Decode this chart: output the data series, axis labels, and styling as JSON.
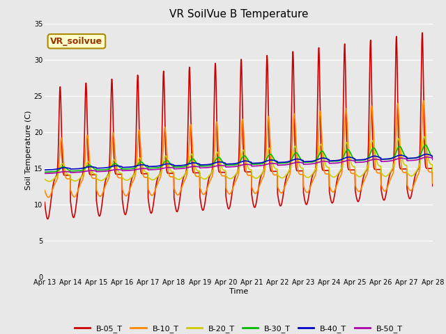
{
  "title": "VR SoilVue B Temperature",
  "xlabel": "Time",
  "ylabel": "Soil Temperature (C)",
  "watermark": "VR_soilvue",
  "ylim": [
    0,
    35
  ],
  "yticks": [
    0,
    5,
    10,
    15,
    20,
    25,
    30,
    35
  ],
  "x_labels": [
    "Apr 13",
    "Apr 14",
    "Apr 15",
    "Apr 16",
    "Apr 17",
    "Apr 18",
    "Apr 19",
    "Apr 20",
    "Apr 21",
    "Apr 22",
    "Apr 23",
    "Apr 24",
    "Apr 25",
    "Apr 26",
    "Apr 27",
    "Apr 28"
  ],
  "series_colors": {
    "B-05_T": "#cc0000",
    "B-10_T": "#ff8800",
    "B-20_T": "#cccc00",
    "B-30_T": "#00bb00",
    "B-40_T": "#0000cc",
    "B-50_T": "#aa00aa"
  },
  "series_order": [
    "B-05_T",
    "B-10_T",
    "B-20_T",
    "B-30_T",
    "B-40_T",
    "B-50_T"
  ],
  "background_color": "#e8e8e8",
  "plot_bg_color": "#e8e8e8",
  "grid_color": "#ffffff",
  "title_fontsize": 11,
  "axis_label_fontsize": 8,
  "tick_fontsize": 7,
  "legend_fontsize": 8,
  "watermark_fontsize": 9
}
